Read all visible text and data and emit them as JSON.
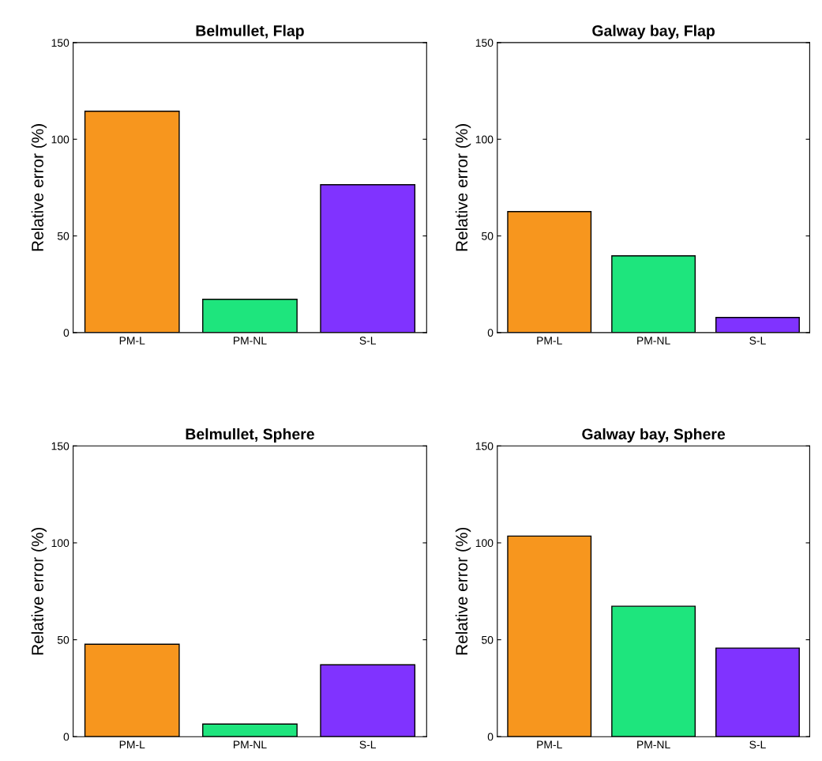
{
  "chart_data": [
    {
      "type": "bar",
      "title": "Belmullet, Flap",
      "ylabel": "Relative error (%)",
      "categories": [
        "PM-L",
        "PM-NL",
        "S-L"
      ],
      "values": [
        114.5,
        17.2,
        76.5
      ],
      "colors": [
        "#f7961e",
        "#1ee57d",
        "#8033ff"
      ],
      "ylim": [
        0,
        150
      ],
      "yticks": [
        0,
        50,
        100,
        150
      ],
      "grid": false
    },
    {
      "type": "bar",
      "title": "Galway bay, Flap",
      "ylabel": "Relative error (%)",
      "categories": [
        "PM-L",
        "PM-NL",
        "S-L"
      ],
      "values": [
        62.6,
        39.7,
        7.8
      ],
      "colors": [
        "#f7961e",
        "#1ee57d",
        "#8033ff"
      ],
      "ylim": [
        0,
        150
      ],
      "yticks": [
        0,
        50,
        100,
        150
      ],
      "grid": false
    },
    {
      "type": "bar",
      "title": "Belmullet, Sphere",
      "ylabel": "Relative error (%)",
      "categories": [
        "PM-L",
        "PM-NL",
        "S-L"
      ],
      "values": [
        47.7,
        6.5,
        37.1
      ],
      "colors": [
        "#f7961e",
        "#1ee57d",
        "#8033ff"
      ],
      "ylim": [
        0,
        150
      ],
      "yticks": [
        0,
        50,
        100,
        150
      ],
      "grid": false
    },
    {
      "type": "bar",
      "title": "Galway bay, Sphere",
      "ylabel": "Relative error (%)",
      "categories": [
        "PM-L",
        "PM-NL",
        "S-L"
      ],
      "values": [
        103.5,
        67.3,
        45.7
      ],
      "colors": [
        "#f7961e",
        "#1ee57d",
        "#8033ff"
      ],
      "ylim": [
        0,
        150
      ],
      "yticks": [
        0,
        50,
        100,
        150
      ],
      "grid": false
    }
  ]
}
